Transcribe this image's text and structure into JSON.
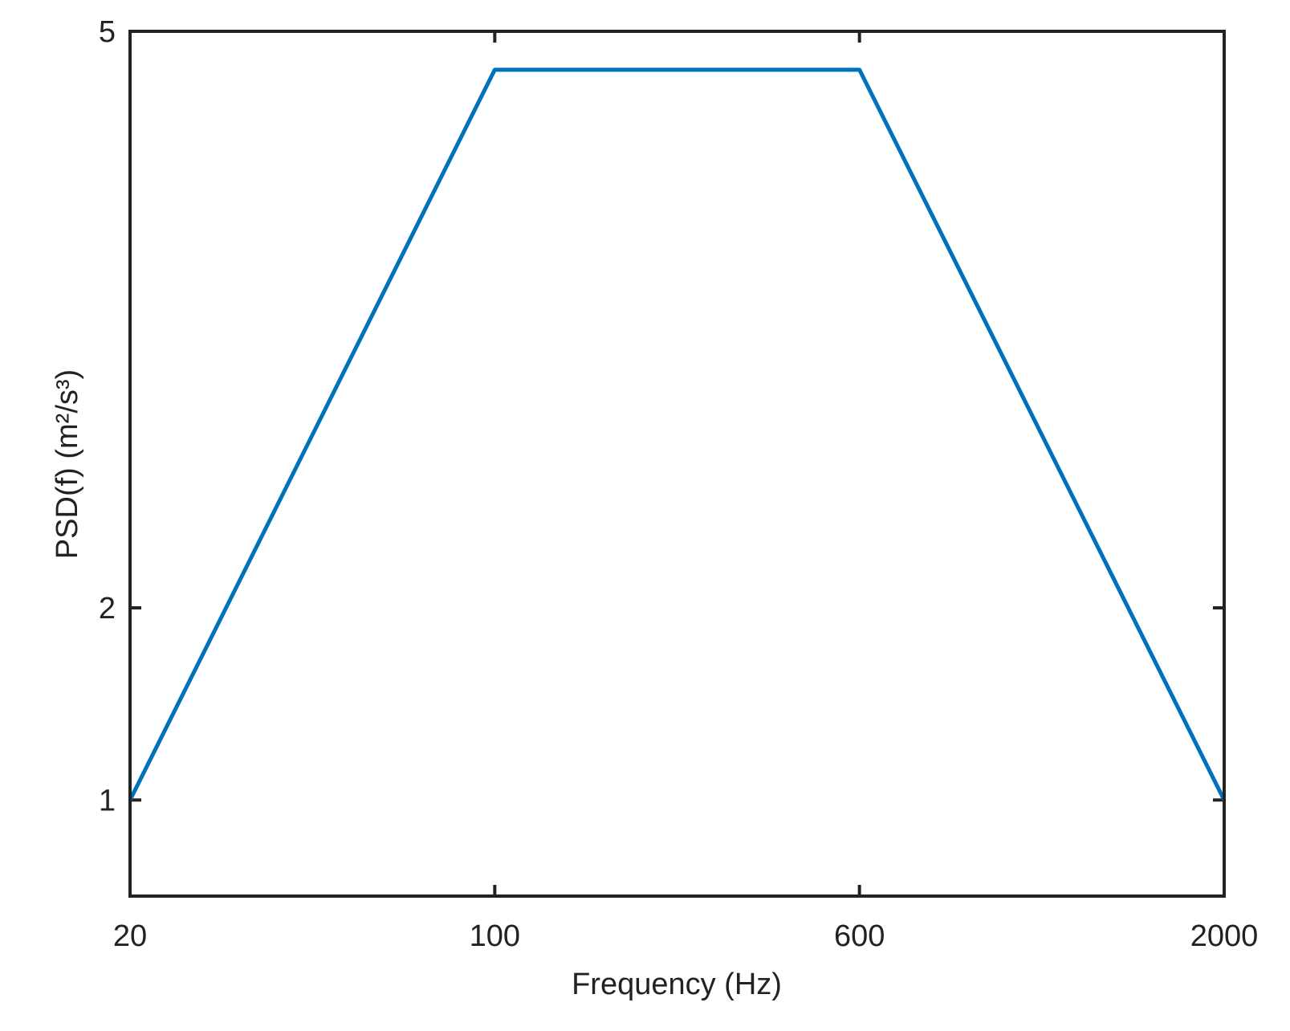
{
  "chart_data": {
    "type": "line",
    "x_label": "Frequency (Hz)",
    "y_label": "PSD(f) (m²/s³)",
    "categories": [
      "20",
      "100",
      "600",
      "2000"
    ],
    "series": [
      {
        "color": "#0072bd",
        "values": [
          1,
          4.8,
          4.8,
          1
        ]
      }
    ],
    "ylim": [
      0.5,
      5
    ],
    "yticks": [
      1,
      2,
      5
    ]
  }
}
